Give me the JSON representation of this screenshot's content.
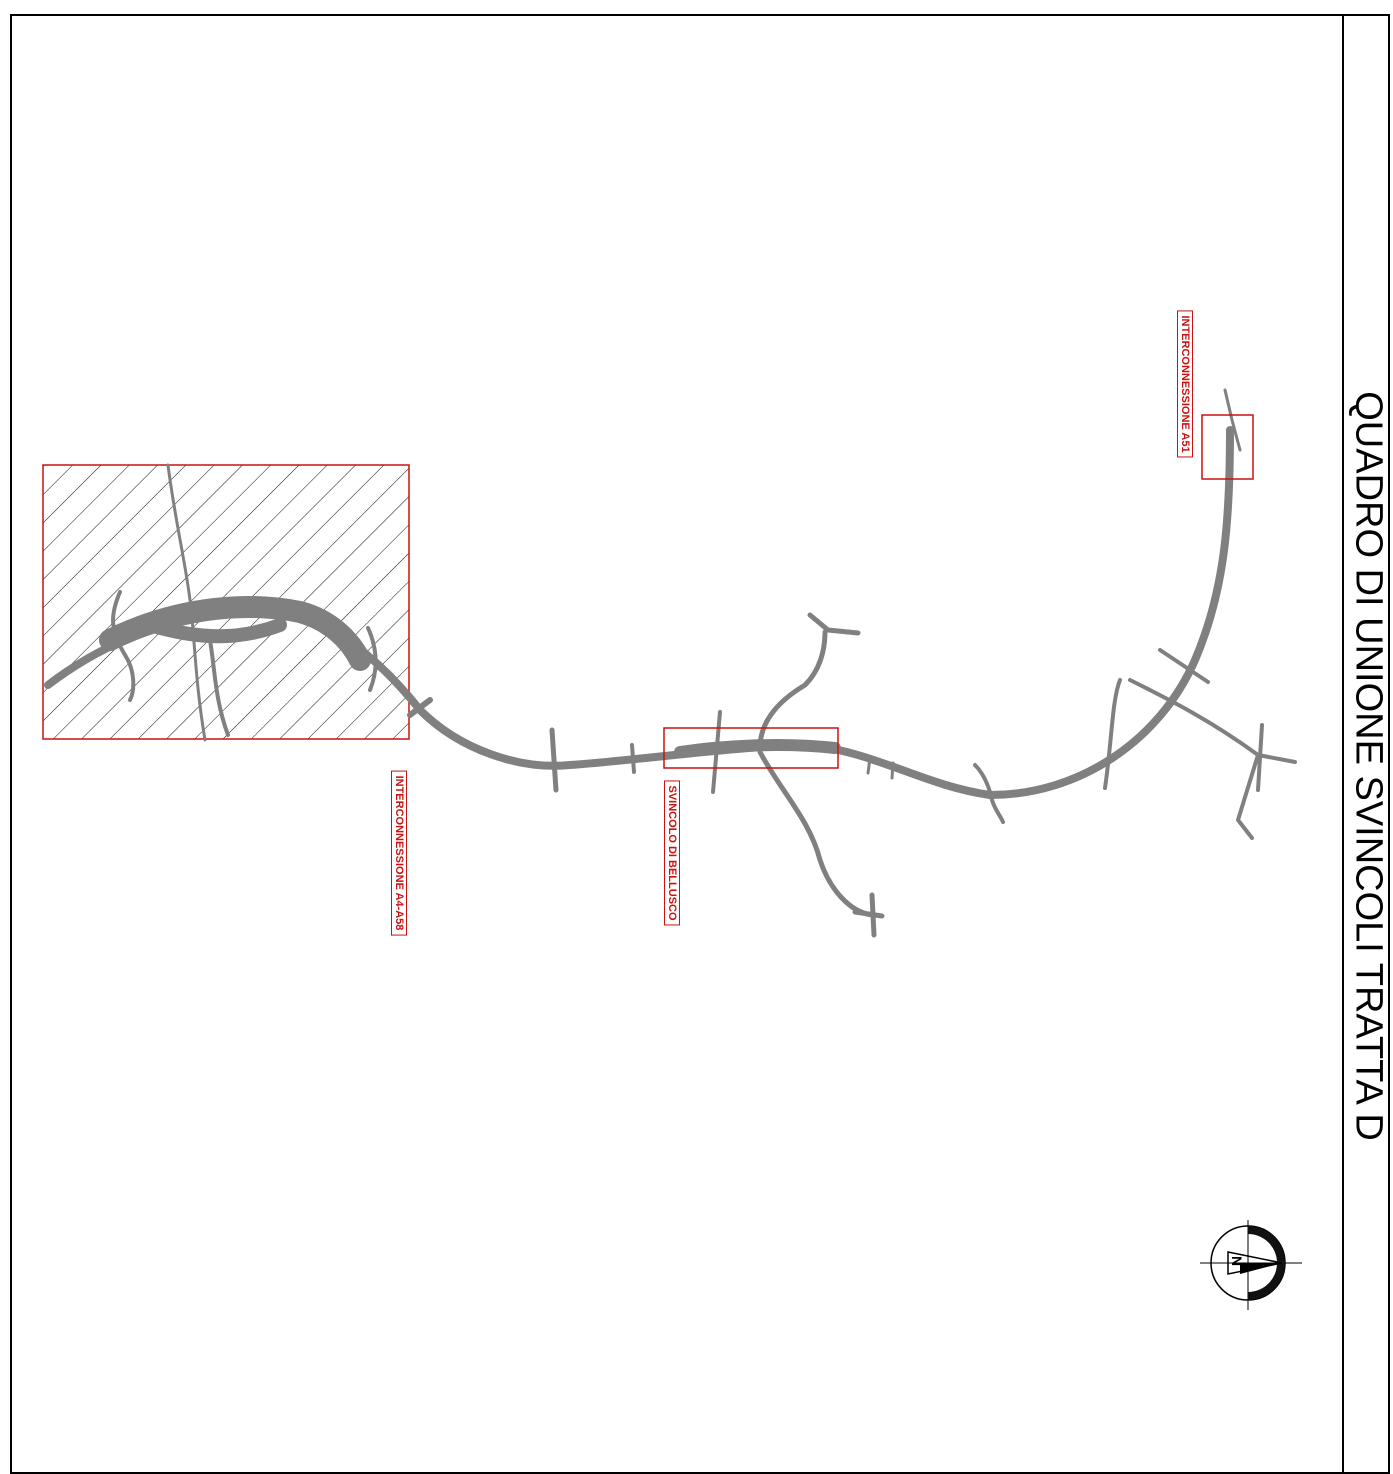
{
  "sheet": {
    "title": "QUADRO DI UNIONE SVINCOLI TRATTA D"
  },
  "labels": {
    "interconnessione_a4_a58": "INTERCONNESSIONE A4-A58",
    "svincolo_bellusco": "SVINCOLO DI BELLUSCO",
    "interconnessione_a51": "INTERCONNESSIONE A51"
  },
  "north_arrow": {
    "letter": "N"
  },
  "colors": {
    "road": "#808080",
    "highlight": "#cc1111",
    "frame": "#000000"
  }
}
